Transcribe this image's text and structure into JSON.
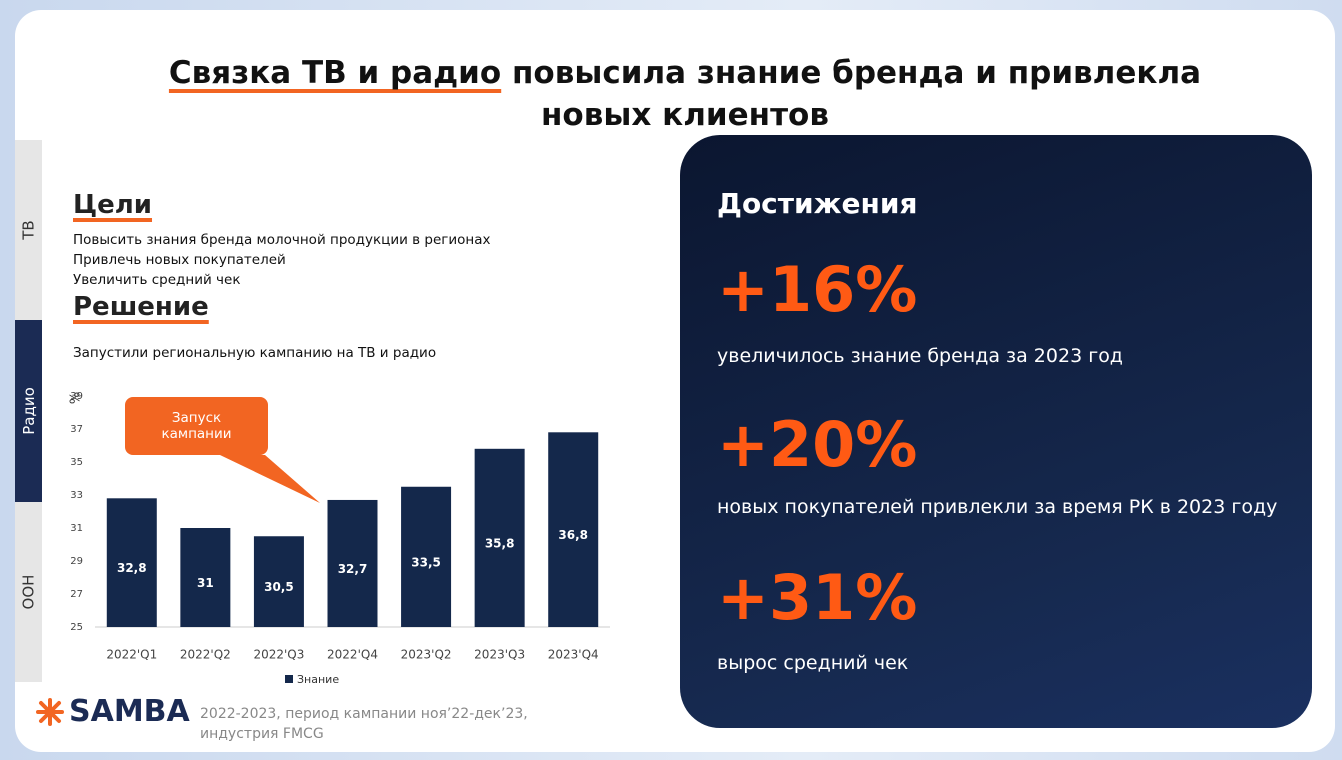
{
  "header": {
    "title_highlight": "Связка ТВ и радио",
    "title_rest": "повысила знание бренда и привлекла новых клиентов"
  },
  "sidebar": [
    "ТВ",
    "Радио",
    "OOH"
  ],
  "goals": {
    "heading": "Цели",
    "items": [
      "Повысить знания бренда молочной продукции в регионах",
      "Привлечь новых покупателей",
      "Увеличить средний чек"
    ]
  },
  "solution": {
    "heading": "Решение",
    "text": "Запустили региональную кампанию на ТВ и радио"
  },
  "chart_data": {
    "type": "bar",
    "y_label": "%",
    "annotation": "Запуск кампании",
    "categories": [
      "2022'Q1",
      "2022'Q2",
      "2022'Q3",
      "2022'Q4",
      "2023'Q2",
      "2023'Q3",
      "2023'Q4"
    ],
    "series": [
      {
        "name": "Знание",
        "color": "#14284b",
        "values": [
          32.8,
          31,
          30.5,
          32.7,
          33.5,
          35.8,
          36.8
        ],
        "value_labels": [
          "32,8",
          "31",
          "30,5",
          "32,7",
          "33,5",
          "35,8",
          "36,8"
        ]
      }
    ],
    "ylim": [
      25,
      39
    ],
    "yticks": [
      25,
      27,
      29,
      31,
      33,
      35,
      37,
      39
    ],
    "grid": false
  },
  "achievements": {
    "heading": "Достижения",
    "items": [
      {
        "value": "+16%",
        "text": "увеличилось знание бренда за 2023 год"
      },
      {
        "value": "+20%",
        "text": "новых покупателей привлекли за время РК в 2023 году"
      },
      {
        "value": "+31%",
        "text": "вырос средний чек"
      }
    ]
  },
  "footer": {
    "logo": "SAMBA",
    "note_lines": [
      "2022-2023, период кампании ноя’22-дек’23,",
      "индустрия FMCG"
    ]
  }
}
